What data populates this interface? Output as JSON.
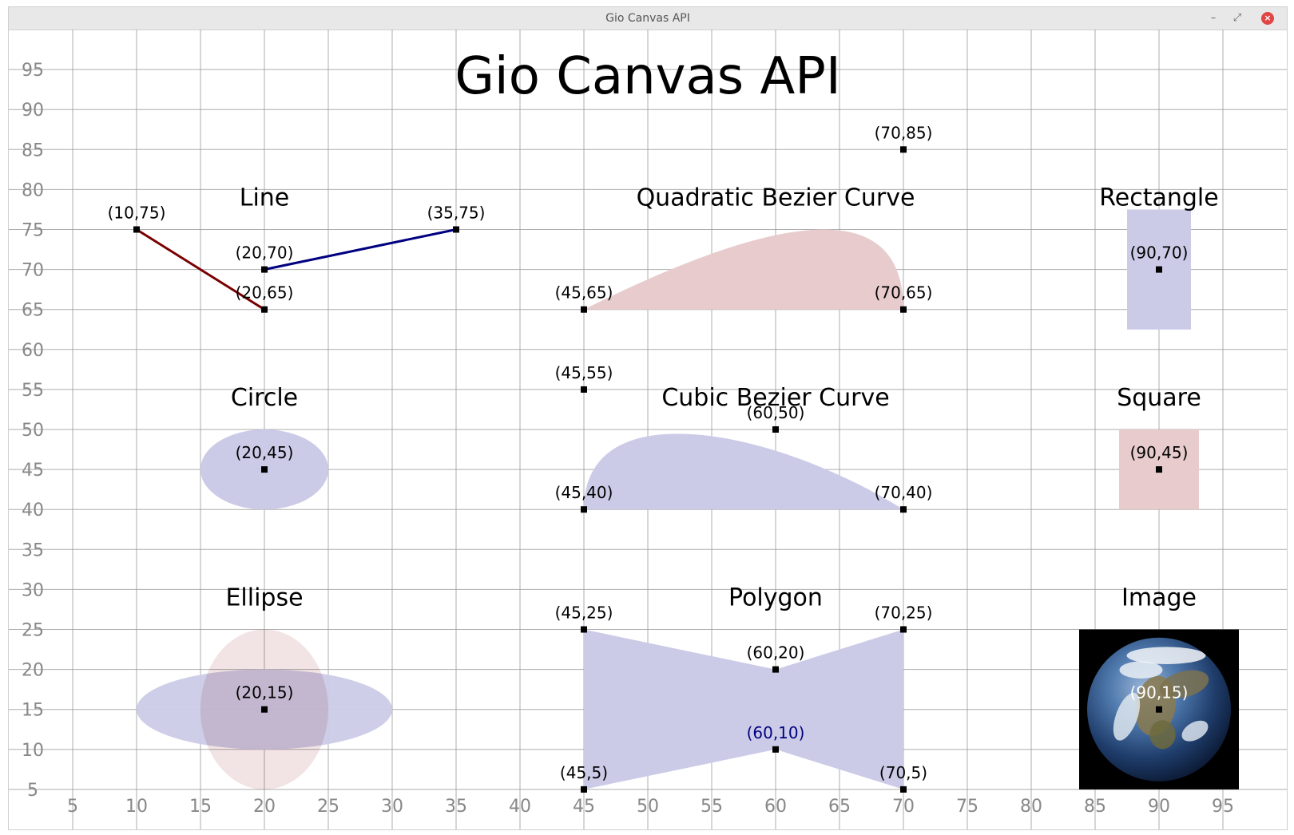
{
  "window": {
    "title": "Gio Canvas API",
    "minimize_glyph": "–",
    "maximize_glyph": "⤢",
    "close_glyph": "×"
  },
  "canvas": {
    "title": "Gio Canvas API",
    "x_axis": {
      "range": [
        0,
        100
      ],
      "ticks": [
        5,
        10,
        15,
        20,
        25,
        30,
        35,
        40,
        45,
        50,
        55,
        60,
        65,
        70,
        75,
        80,
        85,
        90,
        95
      ]
    },
    "y_axis": {
      "range": [
        0,
        100
      ],
      "ticks": [
        5,
        10,
        15,
        20,
        25,
        30,
        35,
        40,
        45,
        50,
        55,
        60,
        65,
        70,
        75,
        80,
        85,
        90,
        95
      ]
    },
    "grid": true,
    "colors": {
      "grid": "#9a9a9a",
      "axis_label": "#888888",
      "text": "#000000",
      "fill_blue": "#cbcbe8",
      "fill_red": "#e8cccd",
      "line_red": "#7a0000",
      "line_blue": "#000080",
      "label_blue": "#000080"
    },
    "section_titles": [
      {
        "id": "line",
        "text": "Line",
        "at": [
          20,
          78
        ]
      },
      {
        "id": "quadratic",
        "text": "Quadratic Bezier Curve",
        "at": [
          60,
          78
        ]
      },
      {
        "id": "rectangle",
        "text": "Rectangle",
        "at": [
          90,
          78
        ]
      },
      {
        "id": "circle",
        "text": "Circle",
        "at": [
          20,
          53
        ]
      },
      {
        "id": "cubic",
        "text": "Cubic Bezier Curve",
        "at": [
          60,
          53
        ]
      },
      {
        "id": "square",
        "text": "Square",
        "at": [
          90,
          53
        ]
      },
      {
        "id": "ellipse",
        "text": "Ellipse",
        "at": [
          20,
          28
        ]
      },
      {
        "id": "polygon",
        "text": "Polygon",
        "at": [
          60,
          28
        ]
      },
      {
        "id": "image",
        "text": "Image",
        "at": [
          90,
          28
        ]
      }
    ],
    "shapes": {
      "line1": {
        "from": [
          10,
          75
        ],
        "to": [
          20,
          65
        ],
        "color": "#7a0000"
      },
      "line2": {
        "from": [
          20,
          70
        ],
        "to": [
          35,
          75
        ],
        "color": "#000080"
      },
      "quadratic": {
        "start": [
          45,
          65
        ],
        "control": [
          70,
          85
        ],
        "end": [
          70,
          65
        ],
        "fill": "#e8cccd"
      },
      "rectangle": {
        "center": [
          90,
          70
        ],
        "half_size": [
          2.5,
          7.5
        ],
        "fill": "#cbcbe8"
      },
      "circle": {
        "center": [
          20,
          45
        ],
        "radius": 5,
        "fill": "#cbcbe8"
      },
      "cubic": {
        "start": [
          45,
          40
        ],
        "control1": [
          45,
          55
        ],
        "control2": [
          60,
          50
        ],
        "end": [
          70,
          40
        ],
        "fill": "#cbcbe8"
      },
      "square": {
        "center": [
          90,
          45
        ],
        "half_size": [
          3.125,
          5
        ],
        "fill": "#e8cccd"
      },
      "ellipse_h": {
        "center": [
          20,
          15
        ],
        "radii": [
          10,
          5
        ],
        "fill": "#cbcbe8"
      },
      "ellipse_v": {
        "center": [
          20,
          15
        ],
        "radii": [
          5,
          10
        ],
        "fill": "#e8cccd"
      },
      "polygon": {
        "points": [
          [
            45,
            25
          ],
          [
            60,
            20
          ],
          [
            70,
            25
          ],
          [
            70,
            5
          ],
          [
            60,
            10
          ],
          [
            45,
            5
          ]
        ],
        "fill": "#cbcbe8"
      },
      "image": {
        "center": [
          90,
          15
        ],
        "half_size": [
          6.25,
          10
        ],
        "subject": "earth-globe"
      }
    },
    "points": [
      {
        "label": "(10,75)",
        "at": [
          10,
          75
        ]
      },
      {
        "label": "(35,75)",
        "at": [
          35,
          75
        ]
      },
      {
        "label": "(20,70)",
        "at": [
          20,
          70
        ]
      },
      {
        "label": "(20,65)",
        "at": [
          20,
          65
        ]
      },
      {
        "label": "(70,85)",
        "at": [
          70,
          85
        ]
      },
      {
        "label": "(45,65)",
        "at": [
          45,
          65
        ]
      },
      {
        "label": "(70,65)",
        "at": [
          70,
          65
        ]
      },
      {
        "label": "(90,70)",
        "at": [
          90,
          70
        ]
      },
      {
        "label": "(20,45)",
        "at": [
          20,
          45
        ]
      },
      {
        "label": "(45,55)",
        "at": [
          45,
          55
        ]
      },
      {
        "label": "(60,50)",
        "at": [
          60,
          50
        ]
      },
      {
        "label": "(45,40)",
        "at": [
          45,
          40
        ]
      },
      {
        "label": "(70,40)",
        "at": [
          70,
          40
        ]
      },
      {
        "label": "(90,45)",
        "at": [
          90,
          45
        ]
      },
      {
        "label": "(45,25)",
        "at": [
          45,
          25
        ]
      },
      {
        "label": "(70,25)",
        "at": [
          70,
          25
        ]
      },
      {
        "label": "(60,20)",
        "at": [
          60,
          20
        ]
      },
      {
        "label": "(20,15)",
        "at": [
          20,
          15
        ]
      },
      {
        "label": "(90,15)",
        "at": [
          90,
          15
        ],
        "color": "#ffffff"
      },
      {
        "label": "(60,10)",
        "at": [
          60,
          10
        ],
        "color": "#000080"
      },
      {
        "label": "(45,5)",
        "at": [
          45,
          5
        ]
      },
      {
        "label": "(70,5)",
        "at": [
          70,
          5
        ]
      }
    ]
  }
}
